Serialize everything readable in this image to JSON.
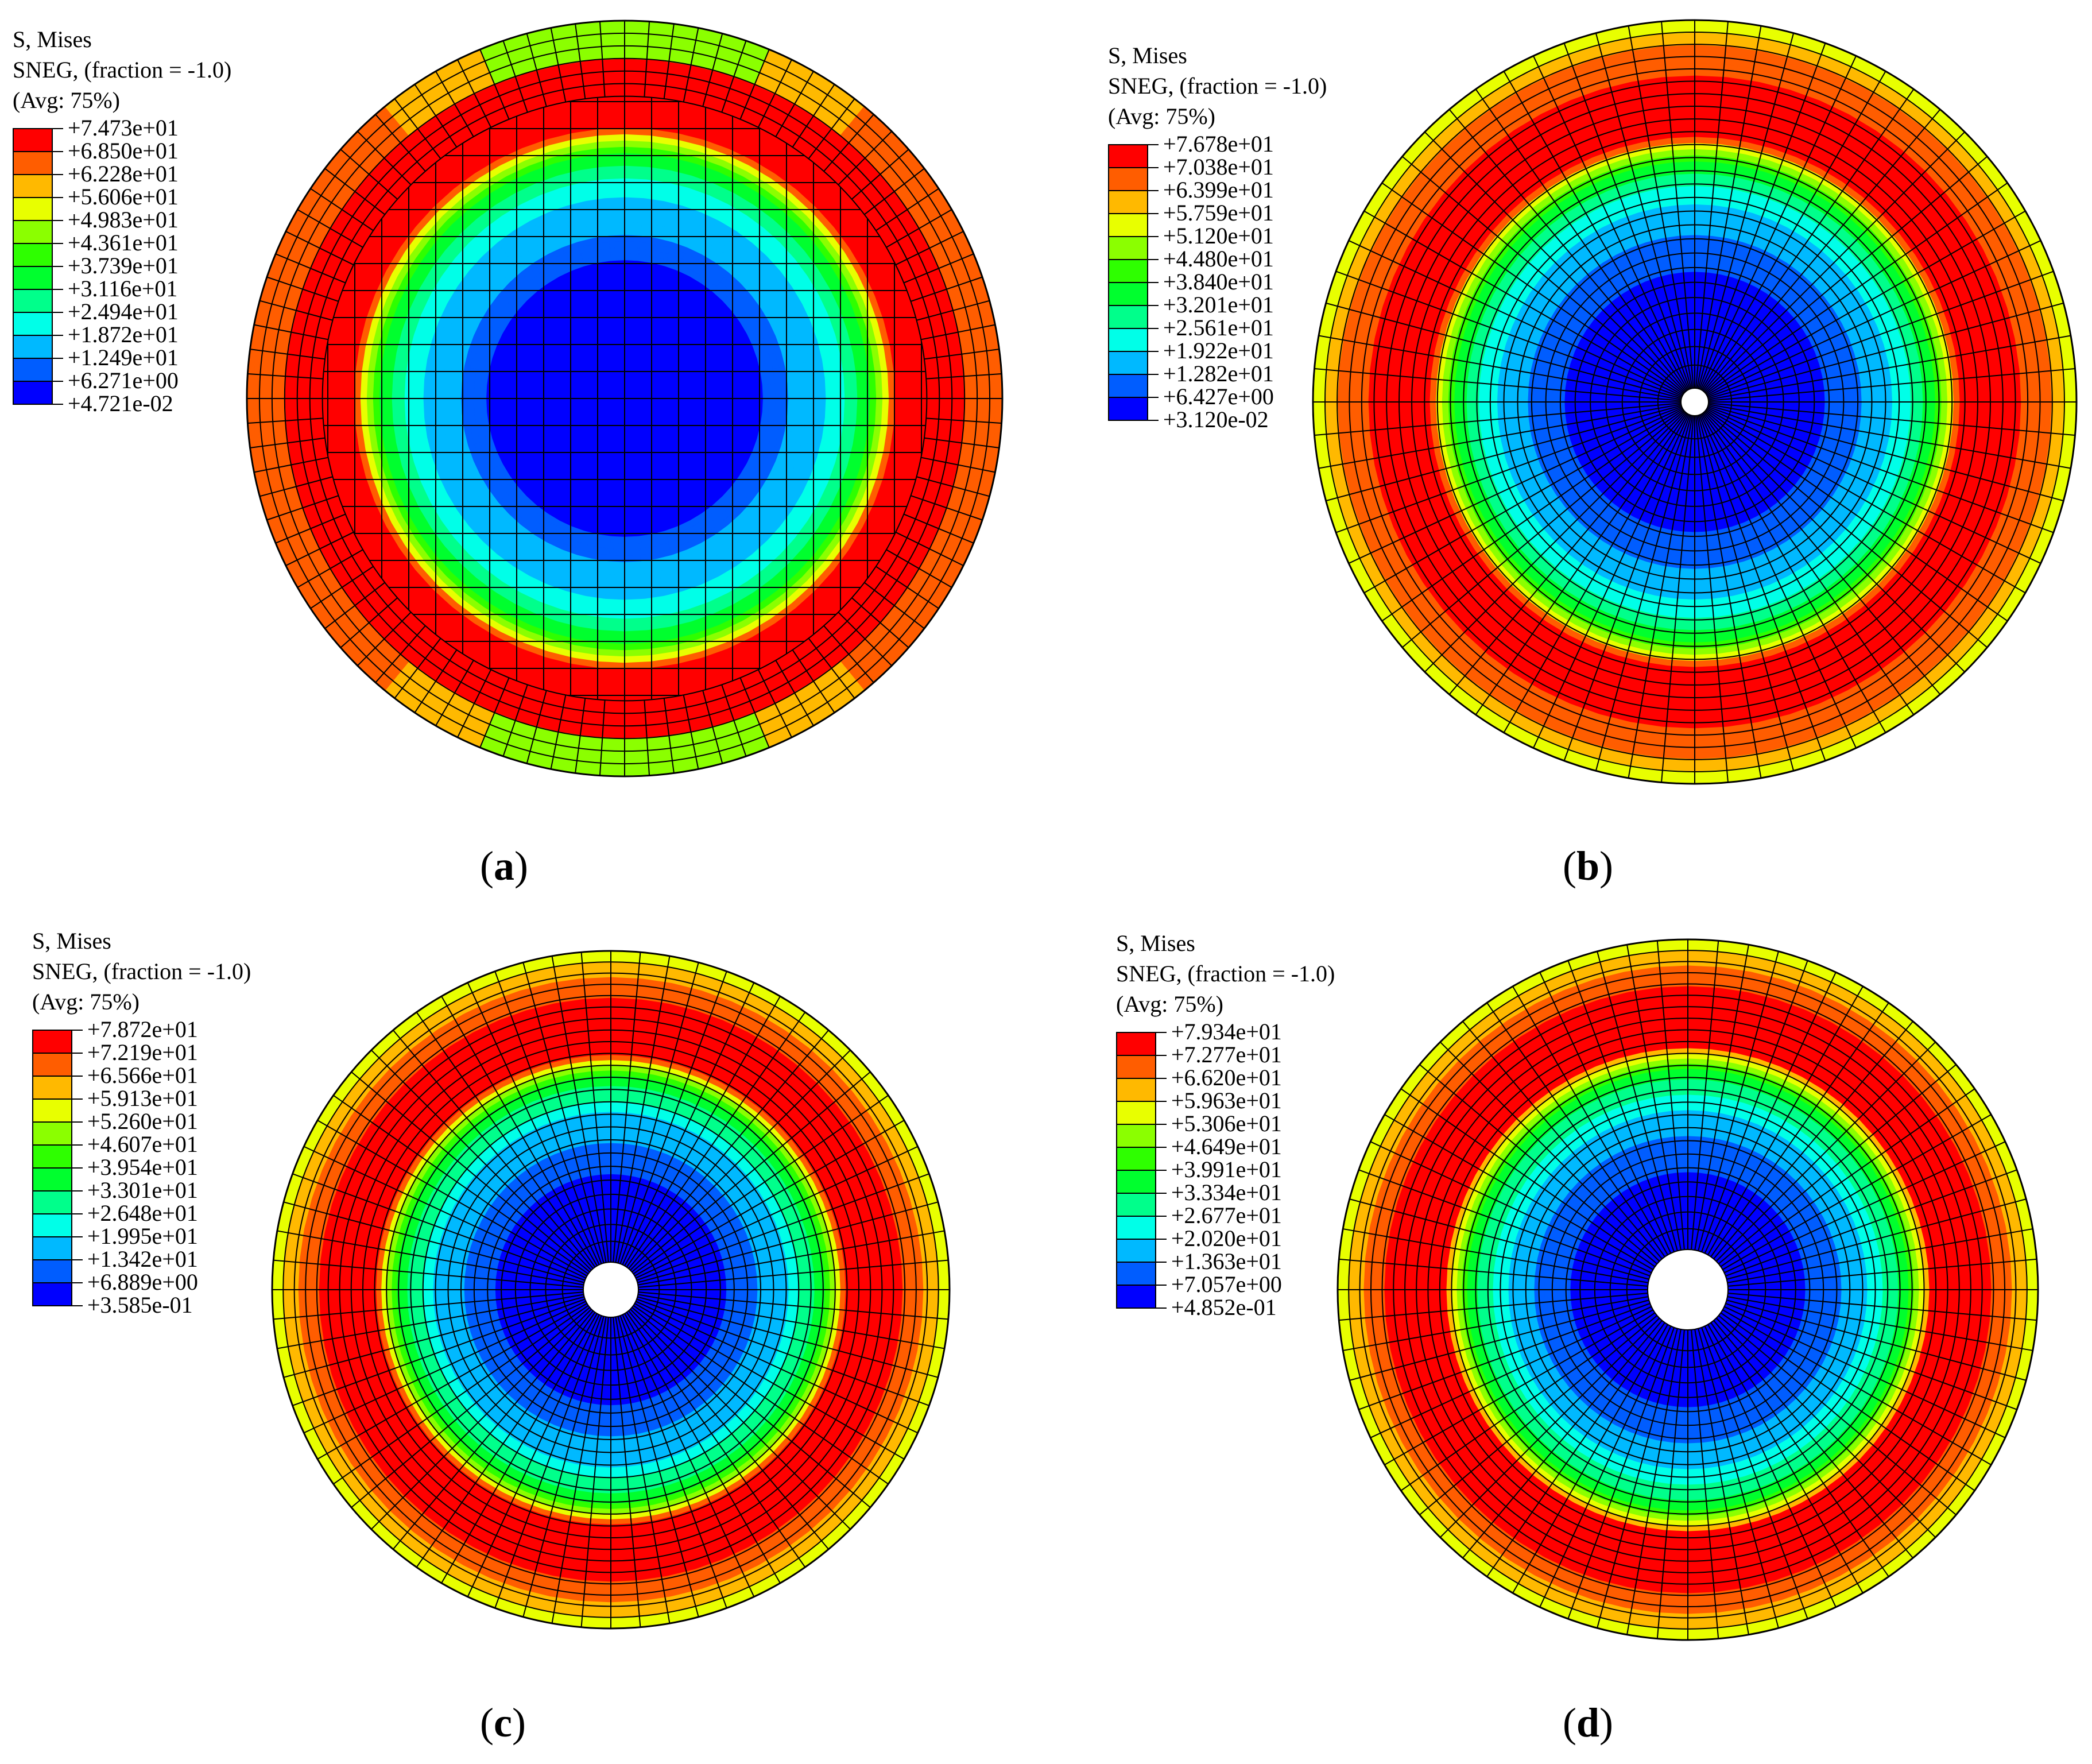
{
  "figure": {
    "colormap": [
      "#0000ff",
      "#005dff",
      "#00b9ff",
      "#00ffe8",
      "#00ff8b",
      "#00ff2e",
      "#2eff00",
      "#8bff00",
      "#e8ff00",
      "#ffb900",
      "#ff5d00",
      "#ff0000"
    ],
    "mesh_color": "#000000",
    "panels": [
      {
        "id": "a",
        "caption_open": "(",
        "caption_letter": "a",
        "caption_close": ")",
        "legend": {
          "title": "S, Mises",
          "subtitle": "SNEG, (fraction = -1.0)",
          "avg": "(Avg: 75%)",
          "values": [
            "+7.473e+01",
            "+6.850e+01",
            "+6.228e+01",
            "+5.606e+01",
            "+4.983e+01",
            "+4.361e+01",
            "+3.739e+01",
            "+3.116e+01",
            "+2.494e+01",
            "+1.872e+01",
            "+1.249e+01",
            "+6.271e+00",
            "+4.721e-02"
          ]
        },
        "model": "solid disk, no central hole"
      },
      {
        "id": "b",
        "caption_open": "(",
        "caption_letter": "b",
        "caption_close": ")",
        "legend": {
          "title": "S, Mises",
          "subtitle": "SNEG, (fraction = -1.0)",
          "avg": "(Avg: 75%)",
          "values": [
            "+7.678e+01",
            "+7.038e+01",
            "+6.399e+01",
            "+5.759e+01",
            "+5.120e+01",
            "+4.480e+01",
            "+3.840e+01",
            "+3.201e+01",
            "+2.561e+01",
            "+1.922e+01",
            "+1.282e+01",
            "+6.427e+00",
            "+3.120e-02"
          ]
        },
        "model": "disk with small central hole"
      },
      {
        "id": "c",
        "caption_open": "(",
        "caption_letter": "c",
        "caption_close": ")",
        "legend": {
          "title": "S, Mises",
          "subtitle": "SNEG, (fraction = -1.0)",
          "avg": "(Avg: 75%)",
          "values": [
            "+7.872e+01",
            "+7.219e+01",
            "+6.566e+01",
            "+5.913e+01",
            "+5.260e+01",
            "+4.607e+01",
            "+3.954e+01",
            "+3.301e+01",
            "+2.648e+01",
            "+1.995e+01",
            "+1.342e+01",
            "+6.889e+00",
            "+3.585e-01"
          ]
        },
        "model": "disk with medium central hole"
      },
      {
        "id": "d",
        "caption_open": "(",
        "caption_letter": "d",
        "caption_close": ")",
        "legend": {
          "title": "S, Mises",
          "subtitle": "SNEG, (fraction = -1.0)",
          "avg": "(Avg: 75%)",
          "values": [
            "+7.934e+01",
            "+7.277e+01",
            "+6.620e+01",
            "+5.963e+01",
            "+5.306e+01",
            "+4.649e+01",
            "+3.991e+01",
            "+3.334e+01",
            "+2.677e+01",
            "+2.020e+01",
            "+1.363e+01",
            "+7.057e+00",
            "+4.852e-01"
          ]
        },
        "model": "disk with large central hole"
      }
    ]
  }
}
